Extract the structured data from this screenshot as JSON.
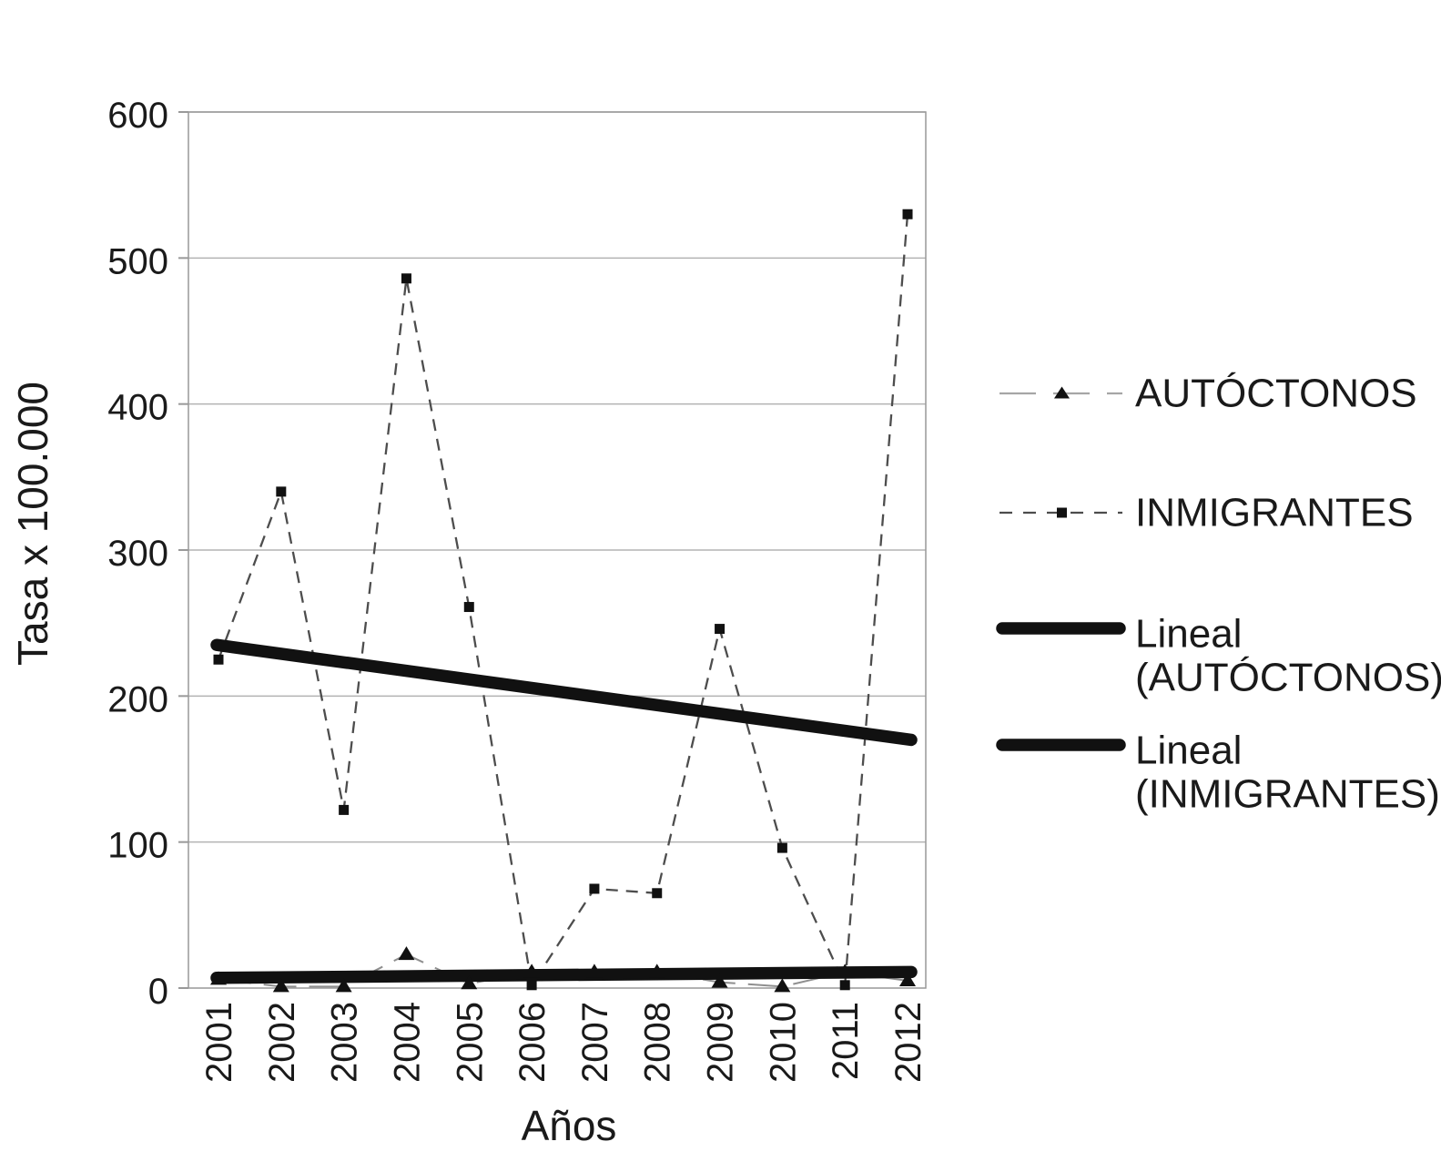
{
  "chart_data": {
    "type": "line",
    "title": "",
    "xlabel": "Años",
    "ylabel": "Tasa x 100.000",
    "ylim": [
      0,
      600
    ],
    "yticks": [
      0,
      100,
      200,
      300,
      400,
      500,
      600
    ],
    "grid": "horizontal",
    "legend_position": "right",
    "categories": [
      "2001",
      "2002",
      "2003",
      "2004",
      "2005",
      "2006",
      "2007",
      "2008",
      "2009",
      "2010",
      "2011",
      "2012"
    ],
    "series": [
      {
        "name": "AUTÓCTONOS",
        "kind": "data",
        "marker": "triangle",
        "line_style": "long-dash",
        "line_color": "#8f8f8f",
        "marker_color": "#111111",
        "values": [
          6,
          1,
          1,
          23,
          3,
          11,
          11,
          11,
          4,
          1,
          11,
          5
        ]
      },
      {
        "name": "INMIGRANTES",
        "kind": "data",
        "marker": "square",
        "line_style": "dash",
        "line_color": "#4d4d4d",
        "marker_color": "#111111",
        "values": [
          225,
          340,
          122,
          486,
          261,
          2,
          68,
          65,
          246,
          96,
          2,
          530
        ]
      },
      {
        "name": "Lineal (AUTÓCTONOS)",
        "kind": "trend",
        "line_color": "#111111",
        "start_value": 7,
        "end_value": 11
      },
      {
        "name": "Lineal (INMIGRANTES)",
        "kind": "trend",
        "line_color": "#111111",
        "start_value": 235,
        "end_value": 170
      }
    ],
    "legend": [
      {
        "lines": [
          "AUTÓCTONOS"
        ],
        "sample": "dash-triangle"
      },
      {
        "lines": [
          "INMIGRANTES"
        ],
        "sample": "dash-square"
      },
      {
        "lines": [
          "Lineal",
          "(AUTÓCTONOS)"
        ],
        "sample": "thick-line"
      },
      {
        "lines": [
          "Lineal",
          "(INMIGRANTES)"
        ],
        "sample": "thick-line"
      }
    ],
    "colors": {
      "text": "#1a1a1a",
      "grid": "#b3b3b3",
      "axis": "#999999",
      "trend": "#111111",
      "legend_dash_light": "#a6a6a6"
    }
  }
}
